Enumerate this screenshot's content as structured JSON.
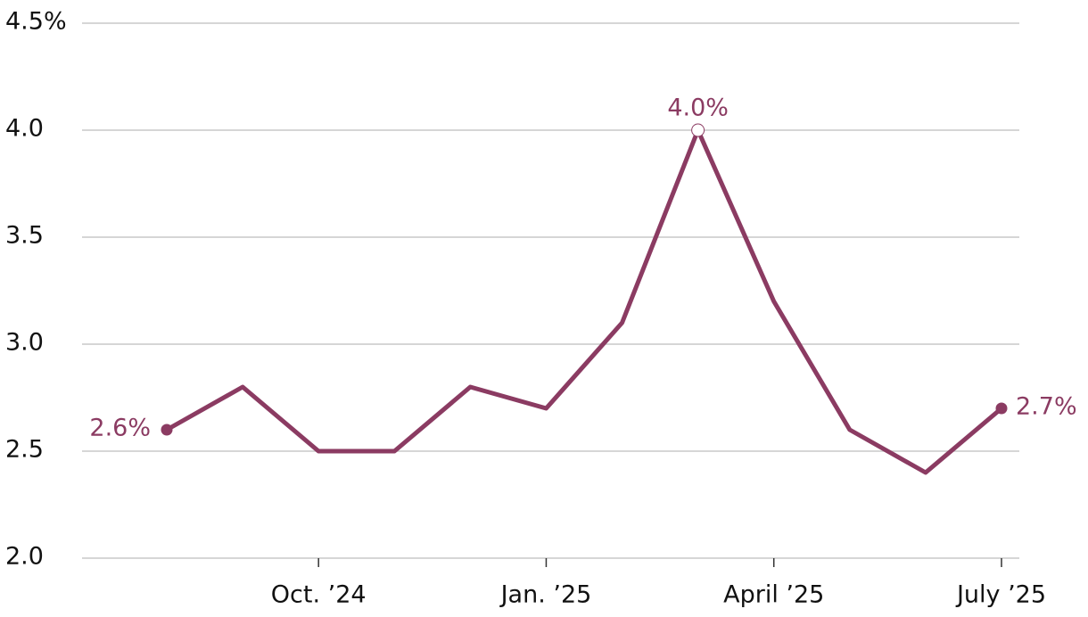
{
  "chart_data": {
    "type": "line",
    "categories": [
      null,
      null,
      "Oct. ’24",
      null,
      null,
      "Jan. ’25",
      null,
      null,
      "April ’25",
      null,
      null,
      "July ’25"
    ],
    "values": [
      2.6,
      2.8,
      2.5,
      2.5,
      2.8,
      2.7,
      3.1,
      4.0,
      3.2,
      2.6,
      2.4,
      2.7
    ],
    "value_labels": [
      "2.6%",
      null,
      null,
      null,
      null,
      null,
      null,
      "4.0%",
      null,
      null,
      null,
      "2.7%"
    ],
    "color": "#8b3b62",
    "ylim": [
      2.0,
      4.5
    ],
    "yticks": [
      {
        "value": 2.0,
        "label": "2.0"
      },
      2.5,
      {
        "value": 3.0,
        "label": "3.0"
      },
      3.5,
      {
        "value": 4.0,
        "label": "4.0"
      },
      {
        "value": 4.5,
        "label": "4.5%"
      }
    ],
    "grid": true
  }
}
